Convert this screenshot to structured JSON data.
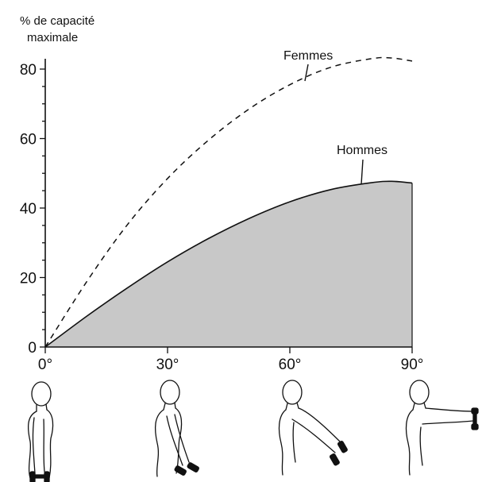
{
  "chart_data": {
    "type": "area",
    "ylabel": [
      "% de capacité",
      "maximale"
    ],
    "xlim": [
      0,
      90
    ],
    "ylim": [
      0,
      80
    ],
    "x_ticks": [
      0,
      30,
      60,
      90
    ],
    "x_tick_labels": [
      "0°",
      "30°",
      "60°",
      "90°"
    ],
    "y_ticks": [
      0,
      20,
      40,
      60,
      80
    ],
    "y_tick_labels": [
      "0",
      "20",
      "40",
      "60",
      "80"
    ],
    "series": [
      {
        "name": "Femmes",
        "style": "dashed",
        "color": "#111111",
        "x": [
          0,
          10,
          20,
          30,
          40,
          50,
          60,
          70,
          80,
          85,
          90
        ],
        "y": [
          0,
          18.5,
          35,
          48.5,
          59.5,
          68.5,
          75.5,
          80.5,
          83,
          83.2,
          82.3
        ]
      },
      {
        "name": "Hommes",
        "style": "filled",
        "color": "#111111",
        "fill": "#c8c8c8",
        "x": [
          0,
          10,
          20,
          30,
          40,
          50,
          60,
          70,
          80,
          85,
          90
        ],
        "y": [
          0,
          8.7,
          16.9,
          24.5,
          31.2,
          37,
          41.8,
          45.3,
          47.3,
          47.7,
          47.2
        ]
      }
    ]
  },
  "illustration": {
    "description_icons": [
      "arm-at-0-deg-figure-icon",
      "arm-at-30-deg-figure-icon",
      "arm-at-60-deg-figure-icon",
      "arm-at-90-deg-figure-icon"
    ]
  }
}
